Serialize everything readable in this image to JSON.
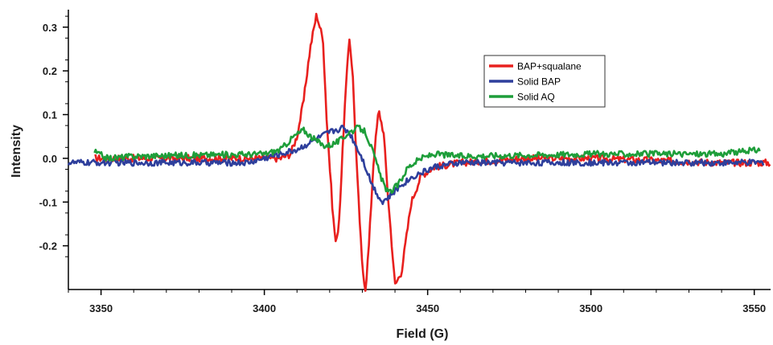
{
  "chart_data": {
    "type": "line",
    "xlabel": "Field (G)",
    "ylabel": "Intensity",
    "xlim": [
      3340,
      3555
    ],
    "ylim": [
      -0.3,
      0.34
    ],
    "xticks": [
      3350,
      3400,
      3450,
      3500,
      3550
    ],
    "xtick_labels": [
      "3350",
      "3400",
      "3450",
      "3500",
      "3550"
    ],
    "yticks": [
      -0.2,
      -0.1,
      0.0,
      0.1,
      0.2,
      0.3
    ],
    "ytick_labels": [
      "-0.2",
      "-0.1",
      "0.0",
      "0.1",
      "0.2",
      "0.3"
    ],
    "grid": false,
    "legend_position": "top-right",
    "series": [
      {
        "name": "BAP+squalane",
        "color": "#e8201e",
        "range": [
          3348,
          3555
        ],
        "noise": 0.008,
        "points": [
          [
            3348,
            0.0
          ],
          [
            3405,
            0.0
          ],
          [
            3408,
            0.01
          ],
          [
            3410,
            0.05
          ],
          [
            3412,
            0.13
          ],
          [
            3414,
            0.25
          ],
          [
            3416,
            0.33
          ],
          [
            3418,
            0.27
          ],
          [
            3419,
            0.1
          ],
          [
            3421,
            -0.13
          ],
          [
            3422,
            -0.2
          ],
          [
            3423,
            -0.13
          ],
          [
            3424.5,
            0.1
          ],
          [
            3426,
            0.28
          ],
          [
            3427,
            0.2
          ],
          [
            3428.5,
            -0.05
          ],
          [
            3430,
            -0.25
          ],
          [
            3431,
            -0.3
          ],
          [
            3432,
            -0.2
          ],
          [
            3433.5,
            0.0
          ],
          [
            3435,
            0.11
          ],
          [
            3436.5,
            0.06
          ],
          [
            3438,
            -0.1
          ],
          [
            3440,
            -0.29
          ],
          [
            3442,
            -0.26
          ],
          [
            3445,
            -0.1
          ],
          [
            3448,
            -0.04
          ],
          [
            3452,
            -0.02
          ],
          [
            3460,
            -0.01
          ],
          [
            3480,
            0.0
          ],
          [
            3500,
            0.0
          ],
          [
            3540,
            -0.01
          ],
          [
            3555,
            -0.01
          ]
        ]
      },
      {
        "name": "Solid BAP",
        "color": "#2e3f9c",
        "range": [
          3340,
          3553
        ],
        "noise": 0.007,
        "points": [
          [
            3340,
            -0.01
          ],
          [
            3395,
            -0.01
          ],
          [
            3400,
            0.0
          ],
          [
            3405,
            0.01
          ],
          [
            3410,
            0.02
          ],
          [
            3415,
            0.04
          ],
          [
            3420,
            0.06
          ],
          [
            3424,
            0.07
          ],
          [
            3426,
            0.06
          ],
          [
            3430,
            0.0
          ],
          [
            3433,
            -0.06
          ],
          [
            3436,
            -0.1
          ],
          [
            3438,
            -0.09
          ],
          [
            3442,
            -0.06
          ],
          [
            3446,
            -0.04
          ],
          [
            3452,
            -0.02
          ],
          [
            3460,
            -0.01
          ],
          [
            3500,
            -0.01
          ],
          [
            3553,
            -0.01
          ]
        ]
      },
      {
        "name": "Solid AQ",
        "color": "#1e9e3a",
        "range": [
          3348,
          3552
        ],
        "noise": 0.007,
        "points": [
          [
            3348,
            0.015
          ],
          [
            3352,
            0.0
          ],
          [
            3360,
            0.005
          ],
          [
            3400,
            0.01
          ],
          [
            3405,
            0.02
          ],
          [
            3409,
            0.05
          ],
          [
            3412,
            0.065
          ],
          [
            3415,
            0.045
          ],
          [
            3418,
            0.03
          ],
          [
            3420,
            0.03
          ],
          [
            3423,
            0.04
          ],
          [
            3426,
            0.06
          ],
          [
            3429,
            0.07
          ],
          [
            3431,
            0.06
          ],
          [
            3433,
            0.02
          ],
          [
            3436,
            -0.05
          ],
          [
            3438,
            -0.08
          ],
          [
            3441,
            -0.06
          ],
          [
            3444,
            -0.02
          ],
          [
            3448,
            0.0
          ],
          [
            3452,
            0.01
          ],
          [
            3460,
            0.005
          ],
          [
            3500,
            0.01
          ],
          [
            3540,
            0.01
          ],
          [
            3552,
            0.02
          ]
        ]
      }
    ]
  }
}
